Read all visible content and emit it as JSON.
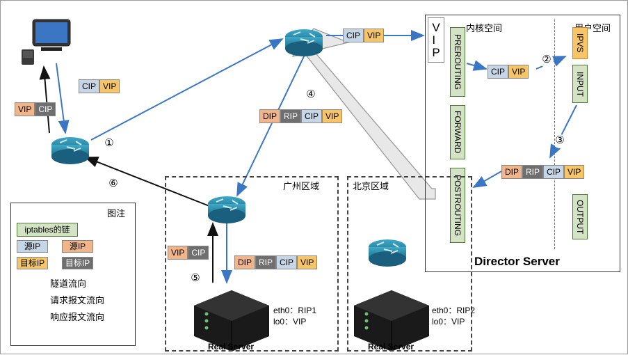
{
  "colors": {
    "blue_line": "#3b76c4",
    "black_line": "#111111",
    "tunnel_fill": "#e8e8e8",
    "tunnel_stroke": "#999999",
    "cip_fill": "#c7d6e6",
    "vip_fill": "#f6c56a",
    "dip_fill": "#f1b58b",
    "rip_fill": "#6f6f6f",
    "rip_text": "#ffffff",
    "chain_fill": "#d4e3c5",
    "chain_border": "#4a7931",
    "ipvs_fill": "#f6c56a",
    "ipvs_border": "#c98924",
    "vert_border": "#888888"
  },
  "tags": {
    "VIP": "VIP",
    "CIP": "CIP",
    "DIP": "DIP",
    "RIP": "RIP",
    "srcIP": "源IP",
    "dstIP": "目标IP"
  },
  "legend": {
    "title": "图注",
    "iptables": "iptables的链",
    "src1": "源IP",
    "src2": "源IP",
    "dst1": "目标IP",
    "dst2": "目标IP",
    "tunnel": "隧道流向",
    "req": "请求报文流向",
    "resp": "响应报文流向"
  },
  "director": {
    "title": "Director Server",
    "kernel": "内核空间",
    "user": "用户空间",
    "pre": "PREROUTING",
    "forward": "FORWARD",
    "post": "POSTROUTING",
    "input": "INPUT",
    "output": "OUTPUT",
    "ipvs": "IPVS"
  },
  "regions": {
    "gz": "广州区域",
    "bj": "北京区域"
  },
  "servers": {
    "rs1_eth": "eth0：RIP1",
    "rs1_lo": "lo0：VIP",
    "rs2_eth": "eth0：RIP2",
    "rs2_lo": "lo0：VIP",
    "rs_name": "Real Server"
  },
  "steps": {
    "1": "①",
    "2": "②",
    "3": "③",
    "4": "④",
    "5": "⑤",
    "6": "⑥"
  },
  "vip_bar": "VIP"
}
